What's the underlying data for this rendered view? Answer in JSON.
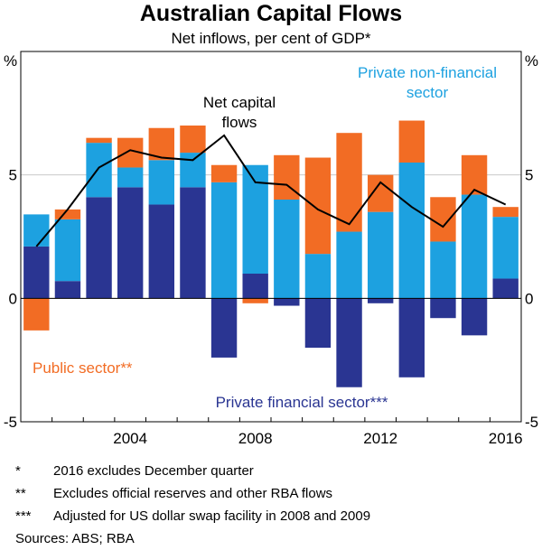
{
  "header": {
    "title": "Australian Capital Flows",
    "subtitle": "Net inflows, per cent of GDP*"
  },
  "chart_data": {
    "type": "bar",
    "stacked": true,
    "title": "Australian Capital Flows",
    "subtitle": "Net inflows, per cent of GDP*",
    "ylabel_left": "%",
    "ylabel_right": "%",
    "ylim": [
      -5,
      10
    ],
    "yticks": [
      -5,
      0,
      5
    ],
    "ytick_labels": [
      "-5",
      "0",
      "5"
    ],
    "xlim": [
      2000.5,
      2016.5
    ],
    "xticks": [
      2004,
      2008,
      2012,
      2016
    ],
    "xtick_labels": [
      "2004",
      "2008",
      "2012",
      "2016"
    ],
    "categories": [
      2001,
      2002,
      2003,
      2004,
      2005,
      2006,
      2007,
      2008,
      2009,
      2010,
      2011,
      2012,
      2013,
      2014,
      2015,
      2016
    ],
    "series": [
      {
        "name": "Private financial sector",
        "label": "Private financial sector***",
        "color": "#2a3592",
        "values": [
          2.1,
          0.7,
          4.1,
          4.5,
          3.8,
          4.5,
          -2.4,
          1.0,
          -0.3,
          -2.0,
          -3.6,
          -0.2,
          -3.2,
          -0.8,
          -1.5,
          0.8
        ]
      },
      {
        "name": "Private non-financial sector",
        "label": "Private non-financial sector",
        "color": "#1da1e0",
        "values": [
          1.3,
          2.5,
          2.2,
          0.8,
          1.8,
          1.4,
          4.7,
          4.4,
          4.0,
          1.8,
          2.7,
          3.5,
          5.5,
          2.3,
          4.2,
          2.5
        ]
      },
      {
        "name": "Public sector",
        "label": "Public sector**",
        "color": "#f26c24",
        "values": [
          -1.3,
          0.4,
          0.2,
          1.2,
          1.3,
          1.1,
          0.7,
          -0.2,
          1.8,
          3.9,
          4.0,
          1.5,
          1.7,
          1.8,
          1.6,
          0.4
        ]
      }
    ],
    "line": {
      "name": "Net capital flows",
      "label": "Net capital flows",
      "color": "#000000",
      "x": [
        2001,
        2002,
        2003,
        2004,
        2005,
        2006,
        2007,
        2008,
        2009,
        2010,
        2011,
        2012,
        2013,
        2014,
        2015,
        2016
      ],
      "values": [
        2.1,
        3.6,
        5.3,
        6.0,
        5.7,
        5.6,
        6.6,
        4.7,
        4.6,
        3.6,
        3.0,
        4.7,
        3.7,
        2.9,
        4.4,
        3.8
      ]
    },
    "annotations": {
      "net_flows": [
        "Net capital",
        "flows"
      ],
      "private_nonfin": [
        "Private non-financial",
        "sector"
      ],
      "public": "Public sector**",
      "private_fin": "Private financial sector***"
    }
  },
  "footnotes": [
    {
      "mark": "*",
      "text": "2016 excludes December quarter"
    },
    {
      "mark": "**",
      "text": "Excludes official reserves and other RBA flows"
    },
    {
      "mark": "***",
      "text": "Adjusted for US dollar swap facility in 2008 and 2009"
    }
  ],
  "sources": "Sources:  ABS; RBA"
}
